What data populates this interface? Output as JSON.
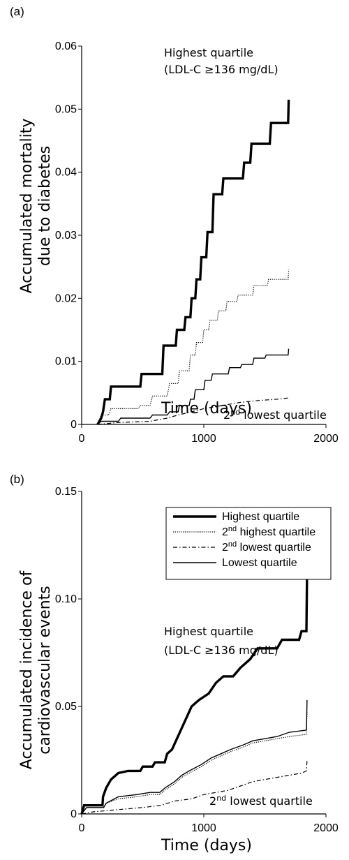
{
  "chart_data": [
    {
      "type": "line",
      "panel_label": "(a)",
      "xlabel": "Time (days)",
      "ylabel": [
        "Accumulated mortality",
        "due to diabetes"
      ],
      "xlim": [
        0,
        2000
      ],
      "ylim": [
        0,
        0.06
      ],
      "x_ticks": [
        "0",
        "1000",
        "2000"
      ],
      "y_ticks": [
        "0",
        "0.01",
        "0.02",
        "0.03",
        "0.04",
        "0.05",
        "0.06"
      ],
      "annotations": [
        {
          "lines": [
            "Highest quartile",
            "(LDL-C ≥136 mg/dL)"
          ]
        },
        {
          "superscript": "nd",
          "base": "2",
          "text": " lowest  quartile"
        }
      ],
      "series": [
        {
          "style": "highest",
          "points": [
            [
              130,
              0
            ],
            [
              160,
              0.001
            ],
            [
              175,
              0.002
            ],
            [
              190,
              0.004
            ],
            [
              230,
              0.004
            ],
            [
              240,
              0.006
            ],
            [
              480,
              0.006
            ],
            [
              490,
              0.008
            ],
            [
              660,
              0.008
            ],
            [
              670,
              0.0125
            ],
            [
              770,
              0.0125
            ],
            [
              780,
              0.015
            ],
            [
              840,
              0.015
            ],
            [
              850,
              0.017
            ],
            [
              890,
              0.017
            ],
            [
              900,
              0.02
            ],
            [
              930,
              0.02
            ],
            [
              940,
              0.023
            ],
            [
              970,
              0.023
            ],
            [
              980,
              0.0265
            ],
            [
              1020,
              0.0265
            ],
            [
              1030,
              0.0305
            ],
            [
              1070,
              0.0305
            ],
            [
              1080,
              0.0365
            ],
            [
              1150,
              0.0365
            ],
            [
              1160,
              0.039
            ],
            [
              1320,
              0.039
            ],
            [
              1330,
              0.0415
            ],
            [
              1380,
              0.0415
            ],
            [
              1390,
              0.0445
            ],
            [
              1540,
              0.0445
            ],
            [
              1550,
              0.0478
            ],
            [
              1690,
              0.0478
            ],
            [
              1695,
              0.0515
            ]
          ]
        },
        {
          "style": "dotted",
          "points": [
            [
              130,
              0
            ],
            [
              160,
              0.0015
            ],
            [
              220,
              0.0015
            ],
            [
              240,
              0.0025
            ],
            [
              460,
              0.0025
            ],
            [
              480,
              0.003
            ],
            [
              560,
              0.003
            ],
            [
              580,
              0.0045
            ],
            [
              700,
              0.0045
            ],
            [
              720,
              0.0065
            ],
            [
              790,
              0.0065
            ],
            [
              800,
              0.0085
            ],
            [
              880,
              0.0085
            ],
            [
              890,
              0.011
            ],
            [
              930,
              0.011
            ],
            [
              940,
              0.013
            ],
            [
              990,
              0.013
            ],
            [
              1000,
              0.015
            ],
            [
              1040,
              0.015
            ],
            [
              1050,
              0.0165
            ],
            [
              1110,
              0.0165
            ],
            [
              1120,
              0.018
            ],
            [
              1180,
              0.018
            ],
            [
              1190,
              0.0195
            ],
            [
              1270,
              0.0195
            ],
            [
              1280,
              0.0205
            ],
            [
              1400,
              0.0205
            ],
            [
              1410,
              0.022
            ],
            [
              1520,
              0.022
            ],
            [
              1530,
              0.023
            ],
            [
              1690,
              0.023
            ],
            [
              1695,
              0.0245
            ]
          ]
        },
        {
          "style": "dashdot",
          "points": [
            [
              130,
              0
            ],
            [
              300,
              0.0003
            ],
            [
              560,
              0.0005
            ],
            [
              700,
              0.001
            ],
            [
              790,
              0.0015
            ],
            [
              900,
              0.002
            ],
            [
              1000,
              0.0025
            ],
            [
              1150,
              0.003
            ],
            [
              1300,
              0.0035
            ],
            [
              1450,
              0.0038
            ],
            [
              1600,
              0.004
            ],
            [
              1695,
              0.0042
            ]
          ]
        },
        {
          "style": "solid",
          "points": [
            [
              130,
              0
            ],
            [
              160,
              0.0005
            ],
            [
              300,
              0.0005
            ],
            [
              320,
              0.001
            ],
            [
              560,
              0.001
            ],
            [
              580,
              0.0015
            ],
            [
              700,
              0.0015
            ],
            [
              720,
              0.002
            ],
            [
              790,
              0.002
            ],
            [
              800,
              0.003
            ],
            [
              880,
              0.003
            ],
            [
              890,
              0.004
            ],
            [
              920,
              0.004
            ],
            [
              930,
              0.0055
            ],
            [
              1000,
              0.0055
            ],
            [
              1010,
              0.007
            ],
            [
              1060,
              0.007
            ],
            [
              1070,
              0.008
            ],
            [
              1200,
              0.008
            ],
            [
              1210,
              0.009
            ],
            [
              1300,
              0.009
            ],
            [
              1310,
              0.0095
            ],
            [
              1400,
              0.0095
            ],
            [
              1410,
              0.0105
            ],
            [
              1500,
              0.0105
            ],
            [
              1510,
              0.011
            ],
            [
              1690,
              0.011
            ],
            [
              1695,
              0.012
            ]
          ]
        }
      ]
    },
    {
      "type": "line",
      "panel_label": "(b)",
      "xlabel": "Time (days)",
      "ylabel": [
        "Accumulated incidence of",
        "cardiovascular events"
      ],
      "xlim": [
        0,
        2000
      ],
      "ylim": [
        0,
        0.15
      ],
      "x_ticks": [
        "0",
        "1000",
        "2000"
      ],
      "y_ticks": [
        "0",
        "0.05",
        "0.10",
        "0.15"
      ],
      "legend": {
        "placement": "top-right",
        "entries": [
          {
            "style": "highest",
            "label": "Highest quartile"
          },
          {
            "style": "dotted",
            "label_base": "2",
            "label_sup": "nd",
            "label_rest": " highest quartile"
          },
          {
            "style": "dashdot",
            "label_base": "2",
            "label_sup": "nd",
            "label_rest": " lowest quartile"
          },
          {
            "style": "solid",
            "label": "Lowest quartile"
          }
        ]
      },
      "annotations": [
        {
          "lines": [
            "Highest quartile",
            "(LDL-C ≥136 mg/dL)"
          ]
        },
        {
          "superscript": "nd",
          "base": "2",
          "text": " lowest  quartile"
        }
      ],
      "series": [
        {
          "style": "highest",
          "points": [
            [
              0,
              0
            ],
            [
              20,
              0.004
            ],
            [
              170,
              0.004
            ],
            [
              175,
              0.008
            ],
            [
              200,
              0.012
            ],
            [
              240,
              0.016
            ],
            [
              300,
              0.019
            ],
            [
              380,
              0.02
            ],
            [
              480,
              0.02
            ],
            [
              500,
              0.022
            ],
            [
              580,
              0.022
            ],
            [
              600,
              0.024
            ],
            [
              680,
              0.024
            ],
            [
              700,
              0.028
            ],
            [
              740,
              0.03
            ],
            [
              780,
              0.035
            ],
            [
              820,
              0.04
            ],
            [
              860,
              0.045
            ],
            [
              900,
              0.05
            ],
            [
              960,
              0.053
            ],
            [
              1040,
              0.056
            ],
            [
              1100,
              0.061
            ],
            [
              1160,
              0.064
            ],
            [
              1240,
              0.064
            ],
            [
              1300,
              0.068
            ],
            [
              1380,
              0.072
            ],
            [
              1440,
              0.077
            ],
            [
              1600,
              0.077
            ],
            [
              1640,
              0.081
            ],
            [
              1780,
              0.081
            ],
            [
              1800,
              0.085
            ],
            [
              1840,
              0.085
            ],
            [
              1845,
              0.113
            ]
          ]
        },
        {
          "style": "dotted",
          "points": [
            [
              0,
              0
            ],
            [
              40,
              0.003
            ],
            [
              180,
              0.003
            ],
            [
              200,
              0.005
            ],
            [
              300,
              0.007
            ],
            [
              450,
              0.008
            ],
            [
              560,
              0.009
            ],
            [
              640,
              0.009
            ],
            [
              680,
              0.011
            ],
            [
              760,
              0.014
            ],
            [
              820,
              0.017
            ],
            [
              880,
              0.019
            ],
            [
              980,
              0.022
            ],
            [
              1060,
              0.025
            ],
            [
              1140,
              0.027
            ],
            [
              1220,
              0.029
            ],
            [
              1320,
              0.031
            ],
            [
              1400,
              0.033
            ],
            [
              1500,
              0.034
            ],
            [
              1600,
              0.035
            ],
            [
              1700,
              0.036
            ],
            [
              1840,
              0.037
            ],
            [
              1845,
              0.048
            ]
          ]
        },
        {
          "style": "dashdot",
          "points": [
            [
              0,
              0
            ],
            [
              100,
              0.001
            ],
            [
              300,
              0.002
            ],
            [
              500,
              0.003
            ],
            [
              650,
              0.004
            ],
            [
              760,
              0.006
            ],
            [
              900,
              0.007
            ],
            [
              1000,
              0.009
            ],
            [
              1100,
              0.01
            ],
            [
              1200,
              0.011
            ],
            [
              1300,
              0.013
            ],
            [
              1400,
              0.015
            ],
            [
              1500,
              0.016
            ],
            [
              1600,
              0.017
            ],
            [
              1700,
              0.018
            ],
            [
              1800,
              0.019
            ],
            [
              1840,
              0.02
            ],
            [
              1845,
              0.025
            ]
          ]
        },
        {
          "style": "solid",
          "points": [
            [
              0,
              0
            ],
            [
              40,
              0.003
            ],
            [
              180,
              0.003
            ],
            [
              200,
              0.005
            ],
            [
              300,
              0.008
            ],
            [
              450,
              0.009
            ],
            [
              560,
              0.01
            ],
            [
              640,
              0.01
            ],
            [
              680,
              0.012
            ],
            [
              760,
              0.015
            ],
            [
              820,
              0.018
            ],
            [
              880,
              0.02
            ],
            [
              980,
              0.023
            ],
            [
              1060,
              0.026
            ],
            [
              1140,
              0.028
            ],
            [
              1220,
              0.03
            ],
            [
              1320,
              0.032
            ],
            [
              1400,
              0.034
            ],
            [
              1500,
              0.035
            ],
            [
              1600,
              0.036
            ],
            [
              1700,
              0.038
            ],
            [
              1840,
              0.039
            ],
            [
              1845,
              0.053
            ]
          ]
        }
      ]
    }
  ]
}
